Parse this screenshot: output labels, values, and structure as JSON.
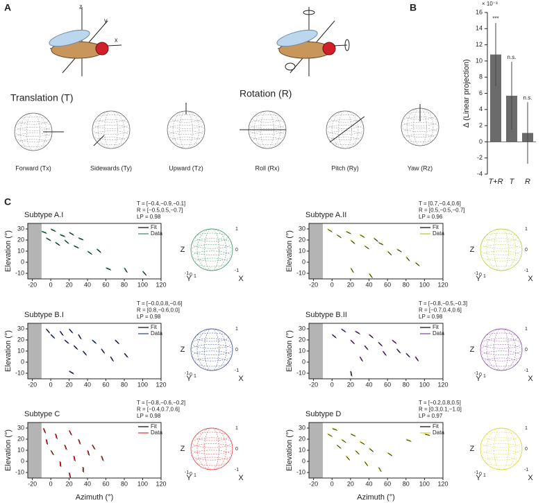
{
  "panel_a": {
    "letter": "A",
    "fly_axis_labels": [
      "z",
      "y",
      "x"
    ],
    "translation_title": "Translation (T)",
    "rotation_title": "Rotation (R)",
    "sphere_labels": [
      "Forward (Tx)",
      "Sidewards (Ty)",
      "Upward (Tz)",
      "Roll (Rx)",
      "Pitch (Ry)",
      "Yaw (Rz)"
    ]
  },
  "panel_b": {
    "letter": "B",
    "chart_data": {
      "type": "bar",
      "ylabel": "∆ (Linear projection)",
      "multiplier": "× 10⁻³",
      "categories": [
        "T+R",
        "T",
        "R"
      ],
      "values": [
        10.8,
        5.7,
        1.1
      ],
      "errors": [
        3.9,
        4.2,
        3.8
      ],
      "annotations": [
        "***",
        "n.s.",
        "n.s."
      ],
      "color": "#6b6b6b",
      "ylim": [
        -4,
        16
      ],
      "yticks": [
        -4,
        -2,
        0,
        2,
        4,
        6,
        8,
        10,
        12,
        14,
        16
      ]
    }
  },
  "panel_c": {
    "letter": "C",
    "xlabel": "Azimuth (°)",
    "ylabel": "Elevation (°)",
    "xlim": [
      -25,
      120
    ],
    "xticks": [
      -20,
      0,
      20,
      40,
      60,
      80,
      100,
      120
    ],
    "ylim": [
      -15,
      35
    ],
    "yticks": [
      -10,
      0,
      10,
      20,
      30
    ],
    "shade": [
      -25,
      -10
    ],
    "legend": [
      "Fit",
      "Data"
    ],
    "sphere_axis_labels": [
      "X",
      "Y",
      "Z"
    ],
    "sphere_ticks": [
      -1,
      0,
      1
    ],
    "charts": [
      {
        "type": "quiver",
        "title": "Subtype A.I",
        "color": "#2e8b57",
        "annotation": [
          "T = [−0.4,−0.9,−0.1]",
          "R = [−0.5,0.5,−0.7]",
          "LP = 0.98"
        ],
        "x": [
          -10,
          -5,
          0,
          5,
          10,
          15,
          20,
          25,
          30,
          40,
          50,
          60,
          80,
          100
        ],
        "y": [
          28,
          22,
          30,
          18,
          25,
          20,
          27,
          15,
          22,
          10,
          12,
          -5,
          -5,
          -8
        ],
        "angle": [
          -20,
          -30,
          -25,
          -35,
          -20,
          -40,
          -30,
          -25,
          -20,
          -35,
          -40,
          -20,
          -60,
          -50
        ]
      },
      {
        "type": "quiver",
        "title": "Subtype A.II",
        "color": "#b5c832",
        "annotation": [
          "T = [0.7,−0.4,0.6]",
          "R = [0.5,−0.5,−0.7]",
          "LP = 0.96"
        ],
        "x": [
          -5,
          5,
          15,
          20,
          30,
          35,
          45,
          50,
          60,
          70,
          80,
          90,
          20,
          40
        ],
        "y": [
          30,
          25,
          28,
          20,
          25,
          15,
          22,
          18,
          10,
          12,
          5,
          0,
          -5,
          -10
        ],
        "angle": [
          -30,
          -35,
          -25,
          -40,
          -30,
          -35,
          -40,
          -25,
          -45,
          -30,
          -50,
          -40,
          -60,
          -55
        ]
      },
      {
        "type": "quiver",
        "title": "Subtype B.I",
        "color": "#2c3e8c",
        "annotation": [
          "T = [−0.0,0.8,−0.6]",
          "R = [0.8,−0.6,0.0]",
          "LP = 0.98"
        ],
        "x": [
          -5,
          0,
          10,
          15,
          20,
          25,
          30,
          35,
          45,
          55,
          65,
          70,
          80,
          20
        ],
        "y": [
          30,
          25,
          28,
          20,
          30,
          15,
          25,
          10,
          20,
          12,
          5,
          20,
          8,
          -8
        ],
        "angle": [
          -50,
          -45,
          -55,
          -40,
          -50,
          -45,
          -60,
          -50,
          -40,
          -55,
          -60,
          -45,
          -50,
          -30
        ]
      },
      {
        "type": "quiver",
        "title": "Subtype B.II",
        "color": "#7b3fa0",
        "annotation": [
          "T = [−0.8,−0.5,−0.3]",
          "R = [−0.7,0.4,0.6]",
          "LP = 0.98"
        ],
        "x": [
          0,
          10,
          20,
          25,
          35,
          40,
          50,
          55,
          65,
          70,
          80,
          90,
          30,
          20
        ],
        "y": [
          25,
          30,
          20,
          28,
          15,
          25,
          18,
          10,
          20,
          12,
          8,
          5,
          5,
          -8
        ],
        "angle": [
          -40,
          -35,
          -45,
          -30,
          -50,
          -40,
          -45,
          -55,
          -40,
          -50,
          -45,
          -55,
          -60,
          -80
        ]
      },
      {
        "type": "quiver",
        "title": "Subtype C",
        "color": "#e03030",
        "annotation": [
          "T = [−0.8,−0.6,−0.2]",
          "R = [−0.4,0.7,0.6]",
          "LP = 0.98"
        ],
        "x": [
          -8,
          -5,
          0,
          5,
          10,
          15,
          20,
          25,
          30,
          35,
          40,
          45,
          55,
          20
        ],
        "y": [
          30,
          20,
          10,
          25,
          0,
          15,
          28,
          5,
          20,
          -5,
          10,
          15,
          5,
          -10
        ],
        "angle": [
          -70,
          -80,
          -60,
          -75,
          -85,
          -70,
          -65,
          -80,
          -70,
          -90,
          -75,
          -60,
          -70,
          -80
        ]
      },
      {
        "type": "quiver",
        "title": "Subtype D",
        "color": "#d4d41a",
        "annotation": [
          "T = [−0.2,0.8,0.5]",
          "R = [0.3,0.1,−1.0]",
          "LP = 0.97"
        ],
        "x": [
          -5,
          0,
          5,
          10,
          15,
          20,
          25,
          30,
          35,
          40,
          50,
          60,
          80,
          100
        ],
        "y": [
          25,
          30,
          15,
          20,
          5,
          25,
          10,
          18,
          0,
          12,
          -5,
          8,
          20,
          25
        ],
        "angle": [
          -30,
          -20,
          -40,
          -35,
          -50,
          -25,
          -45,
          -30,
          -55,
          -40,
          -60,
          -35,
          -20,
          -15
        ]
      }
    ]
  }
}
